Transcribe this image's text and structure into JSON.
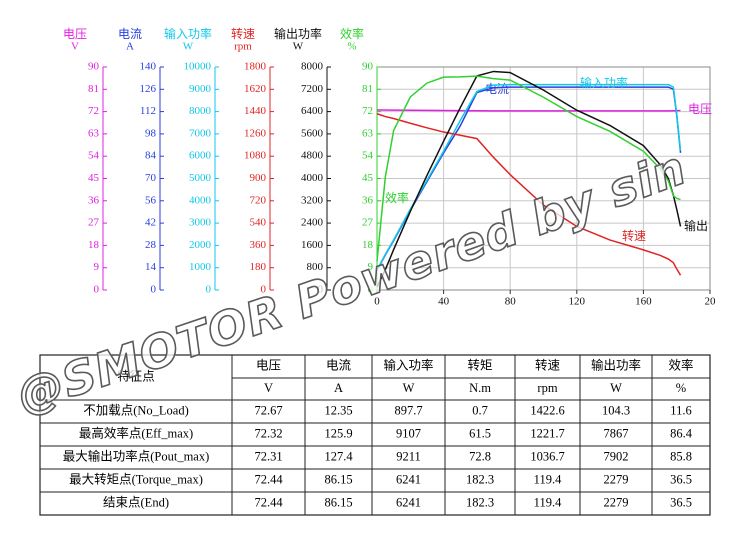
{
  "chart_data": {
    "type": "line",
    "xlim": [
      0,
      200
    ],
    "xticks": [
      0,
      40,
      80,
      120,
      160,
      {
        "value": 200,
        "label": "20"
      }
    ],
    "grid": true,
    "axes": [
      {
        "name": "电压",
        "unit": "V",
        "color": "#e020e0",
        "lim": [
          0,
          90
        ],
        "ticks": [
          0,
          9,
          18,
          27,
          36,
          45,
          54,
          63,
          72,
          81,
          90
        ]
      },
      {
        "name": "电流",
        "unit": "A",
        "color": "#2a3ee0",
        "lim": [
          0,
          140
        ],
        "ticks": [
          0,
          14,
          28,
          42,
          56,
          70,
          84,
          98,
          112,
          126,
          140
        ]
      },
      {
        "name": "输入功率",
        "unit": "W",
        "color": "#10c8e8",
        "lim": [
          0,
          10000
        ],
        "ticks": [
          0,
          1000,
          2000,
          3000,
          4000,
          5000,
          6000,
          7000,
          8000,
          9000,
          10000
        ]
      },
      {
        "name": "转速",
        "unit": "rpm",
        "color": "#e02424",
        "lim": [
          0,
          1800
        ],
        "ticks": [
          0,
          180,
          360,
          540,
          720,
          900,
          1080,
          1260,
          1440,
          1620,
          1800
        ]
      },
      {
        "name": "输出功率",
        "unit": "W",
        "color": "#111111",
        "lim": [
          0,
          8000
        ],
        "ticks": [
          0,
          800,
          1600,
          2400,
          3200,
          4000,
          4800,
          5600,
          6400,
          7200,
          8000
        ]
      },
      {
        "name": "效率",
        "unit": "%",
        "color": "#30d030",
        "lim": [
          0,
          90
        ],
        "ticks": [
          0,
          9,
          18,
          27,
          36,
          45,
          54,
          63,
          72,
          81,
          90
        ]
      }
    ],
    "x": [
      0,
      5,
      10,
      20,
      30,
      40,
      50,
      60,
      70,
      80,
      100,
      120,
      140,
      160,
      170,
      175,
      178,
      180,
      182.3
    ],
    "series": [
      {
        "label": "电压",
        "axis": 0,
        "values": [
          72.67,
          72.65,
          72.6,
          72.55,
          72.5,
          72.45,
          72.4,
          72.35,
          72.31,
          72.3,
          72.3,
          72.3,
          72.3,
          72.3,
          72.3,
          72.3,
          72.35,
          72.4,
          72.44
        ]
      },
      {
        "label": "电流",
        "axis": 1,
        "values": [
          12.35,
          22,
          31,
          50,
          68,
          86,
          103,
          124,
          127,
          127.4,
          127.4,
          127.4,
          127.4,
          127.4,
          127.4,
          127.4,
          126,
          110,
          86.15
        ]
      },
      {
        "label": "输入功率",
        "axis": 2,
        "values": [
          897.7,
          1600,
          2250,
          3620,
          4920,
          6220,
          7600,
          8900,
          9190,
          9211,
          9211,
          9211,
          9211,
          9211,
          9211,
          9211,
          9100,
          7900,
          6241
        ]
      },
      {
        "label": "转速",
        "axis": 3,
        "values": [
          1422.6,
          1400,
          1384,
          1346,
          1309,
          1275,
          1249,
          1222,
          1070,
          931,
          685,
          513,
          403,
          324,
          280,
          250,
          220,
          170,
          119.4
        ]
      },
      {
        "label": "输出",
        "axis": 4,
        "values": [
          104.3,
          730,
          1450,
          2820,
          4110,
          5340,
          6540,
          7680,
          7840,
          7800,
          7170,
          6450,
          5900,
          5180,
          4500,
          4000,
          3400,
          2900,
          2279
        ]
      },
      {
        "label": "效率",
        "axis": 5,
        "values": [
          11.6,
          45.6,
          64.4,
          77.9,
          83.5,
          85.9,
          86,
          86.3,
          85.3,
          84.7,
          77.8,
          70,
          64,
          56,
          49,
          44,
          38,
          37,
          36.5
        ]
      }
    ]
  },
  "table": {
    "header": [
      "特征点",
      "电压",
      "电流",
      "输入功率",
      "转矩",
      "转速",
      "输出功率",
      "效率"
    ],
    "units": [
      "V",
      "A",
      "W",
      "N.m",
      "rpm",
      "W",
      "%"
    ],
    "rows": [
      [
        "不加载点(No_Load)",
        72.67,
        12.35,
        897.7,
        0.7,
        1422.6,
        104.3,
        11.6
      ],
      [
        "最高效率点(Eff_max)",
        72.32,
        125.9,
        9107,
        61.5,
        1221.7,
        7867,
        86.4
      ],
      [
        "最大输出功率点(Pout_max)",
        72.31,
        127.4,
        9211,
        72.8,
        1036.7,
        7902,
        85.8
      ],
      [
        "最大转矩点(Torque_max)",
        72.44,
        86.15,
        6241,
        182.3,
        119.4,
        2279,
        36.5
      ],
      [
        "结束点(End)",
        72.44,
        86.15,
        6241,
        182.3,
        119.4,
        2279,
        36.5
      ]
    ]
  },
  "watermark": "@SMOTOR Powered by sin"
}
